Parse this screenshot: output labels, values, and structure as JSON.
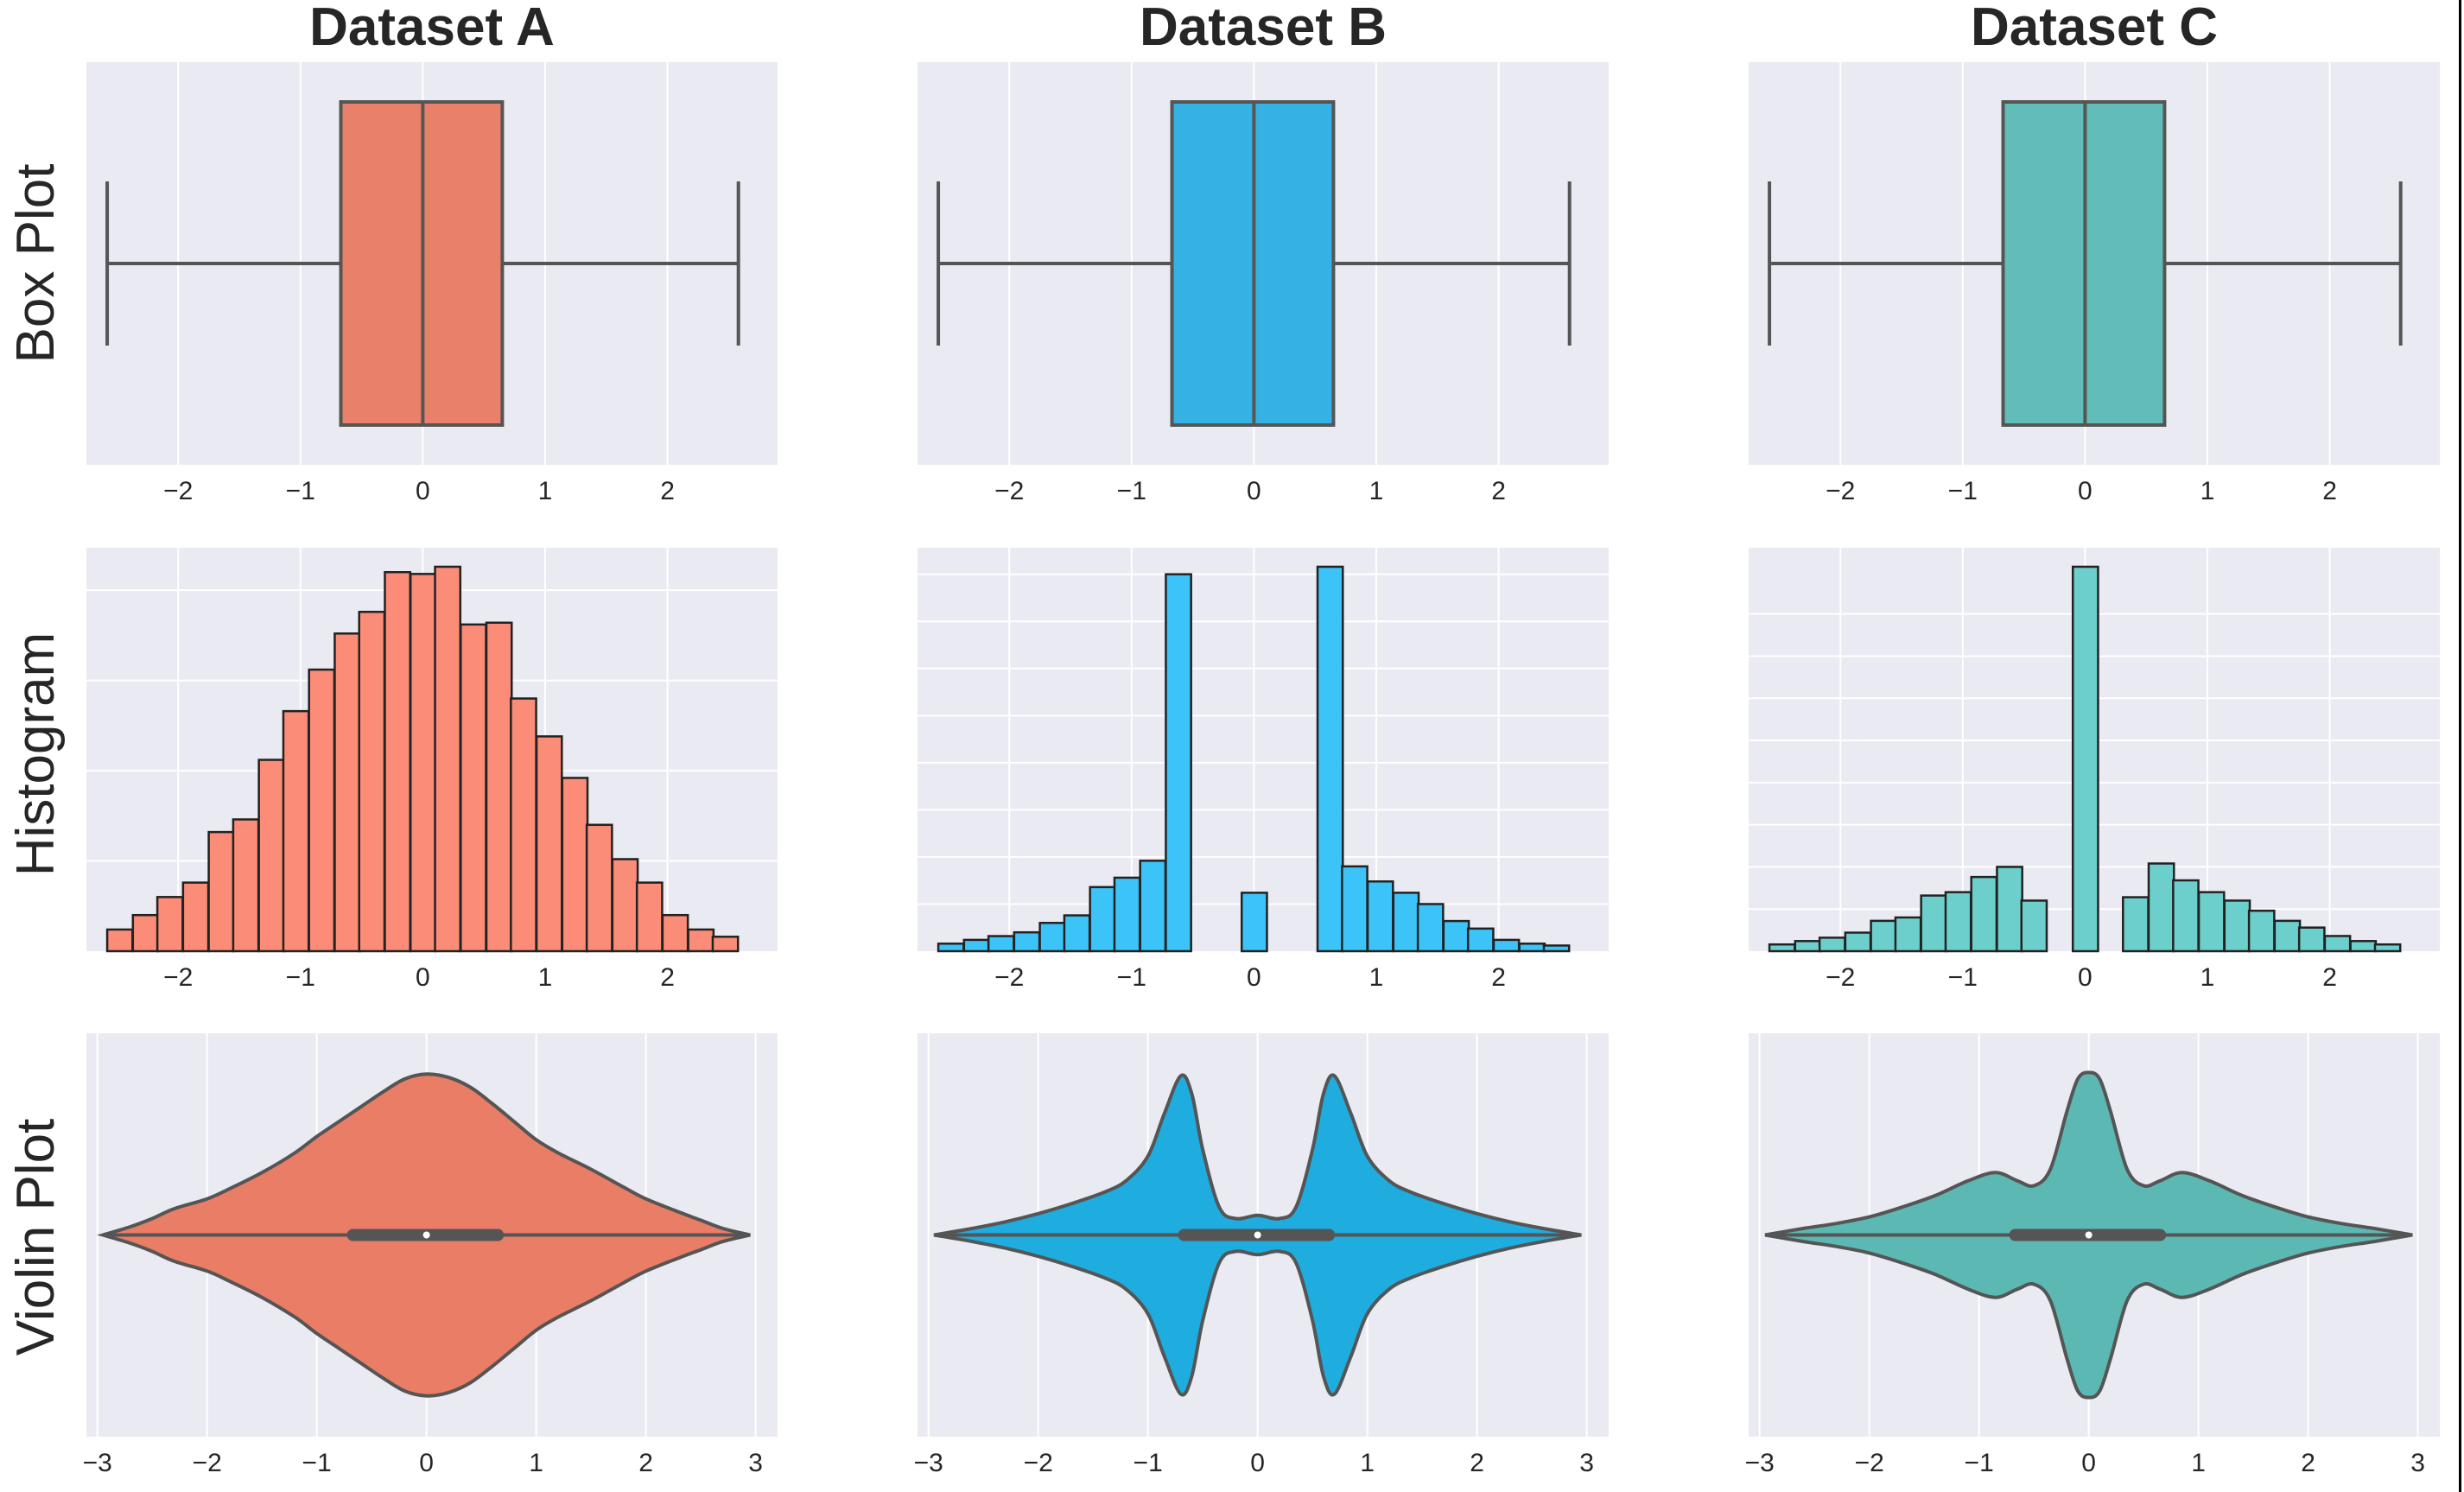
{
  "chart_data": {
    "type": "figure-grid",
    "columns": [
      "Dataset A",
      "Dataset B",
      "Dataset C"
    ],
    "rows": [
      "Box Plot",
      "Histogram",
      "Violin Plot"
    ],
    "colors": {
      "Dataset A": "#e8806a",
      "Dataset B": "#35b2e3",
      "Dataset C": "#62bdb9",
      "hist_Dataset A": "#fa8c78",
      "hist_Dataset B": "#3cc3f7",
      "hist_Dataset C": "#6ccfcb",
      "violin_Dataset A": "#ea7d66",
      "violin_Dataset B": "#1facdf",
      "violin_Dataset C": "#5cb8b3",
      "panel_bg": "#eaeaf2",
      "grid": "#ffffff",
      "edge": "#555555"
    },
    "grid": true,
    "box_plot": {
      "xlim": [
        -2.75,
        2.9
      ],
      "xticks": [
        "−2",
        "−1",
        "0",
        "1",
        "2"
      ],
      "xtick_values": [
        -2,
        -1,
        0,
        1,
        2
      ],
      "stats": [
        {
          "name": "Dataset A",
          "whisker_low": -2.58,
          "q1": -0.67,
          "median": 0.0,
          "q3": 0.65,
          "whisker_high": 2.58
        },
        {
          "name": "Dataset B",
          "whisker_low": -2.58,
          "q1": -0.67,
          "median": 0.0,
          "q3": 0.65,
          "whisker_high": 2.58
        },
        {
          "name": "Dataset C",
          "whisker_low": -2.58,
          "q1": -0.67,
          "median": 0.0,
          "q3": 0.65,
          "whisker_high": 2.58
        }
      ]
    },
    "histogram": {
      "xlim": [
        -2.75,
        2.9
      ],
      "xticks": [
        "−2",
        "−1",
        "0",
        "1",
        "2"
      ],
      "xtick_values": [
        -2,
        -1,
        0,
        1,
        2
      ],
      "bin_width": 0.2065,
      "series": [
        {
          "name": "Dataset A",
          "bins": [
            {
              "x0": -2.58,
              "count": 12
            },
            {
              "x0": -2.37,
              "count": 20
            },
            {
              "x0": -2.17,
              "count": 30
            },
            {
              "x0": -1.96,
              "count": 38
            },
            {
              "x0": -1.75,
              "count": 66
            },
            {
              "x0": -1.55,
              "count": 73
            },
            {
              "x0": -1.34,
              "count": 106
            },
            {
              "x0": -1.14,
              "count": 133
            },
            {
              "x0": -0.93,
              "count": 156
            },
            {
              "x0": -0.72,
              "count": 176
            },
            {
              "x0": -0.52,
              "count": 188
            },
            {
              "x0": -0.31,
              "count": 210
            },
            {
              "x0": -0.1,
              "count": 209
            },
            {
              "x0": 0.1,
              "count": 213
            },
            {
              "x0": 0.31,
              "count": 181
            },
            {
              "x0": 0.52,
              "count": 182
            },
            {
              "x0": 0.72,
              "count": 140
            },
            {
              "x0": 0.93,
              "count": 119
            },
            {
              "x0": 1.14,
              "count": 96
            },
            {
              "x0": 1.34,
              "count": 70
            },
            {
              "x0": 1.55,
              "count": 51
            },
            {
              "x0": 1.75,
              "count": 38
            },
            {
              "x0": 1.96,
              "count": 20
            },
            {
              "x0": 2.17,
              "count": 12
            },
            {
              "x0": 2.37,
              "count": 8
            }
          ]
        },
        {
          "name": "Dataset B",
          "bins": [
            {
              "x0": -2.58,
              "count": 4
            },
            {
              "x0": -2.37,
              "count": 6
            },
            {
              "x0": -2.17,
              "count": 8
            },
            {
              "x0": -1.96,
              "count": 10
            },
            {
              "x0": -1.75,
              "count": 15
            },
            {
              "x0": -1.55,
              "count": 19
            },
            {
              "x0": -1.34,
              "count": 34
            },
            {
              "x0": -1.14,
              "count": 39
            },
            {
              "x0": -0.93,
              "count": 48
            },
            {
              "x0": -0.72,
              "count": 200
            },
            {
              "x0": -0.52,
              "count": 0
            },
            {
              "x0": -0.31,
              "count": 0
            },
            {
              "x0": -0.1,
              "count": 31
            },
            {
              "x0": 0.1,
              "count": 0
            },
            {
              "x0": 0.31,
              "count": 0
            },
            {
              "x0": 0.52,
              "count": 204
            },
            {
              "x0": 0.72,
              "count": 45
            },
            {
              "x0": 0.93,
              "count": 37
            },
            {
              "x0": 1.14,
              "count": 31
            },
            {
              "x0": 1.34,
              "count": 25
            },
            {
              "x0": 1.55,
              "count": 16
            },
            {
              "x0": 1.75,
              "count": 12
            },
            {
              "x0": 1.96,
              "count": 6
            },
            {
              "x0": 2.17,
              "count": 4
            },
            {
              "x0": 2.37,
              "count": 3
            }
          ]
        },
        {
          "name": "Dataset C",
          "bins": [
            {
              "x0": -2.58,
              "count": 4
            },
            {
              "x0": -2.37,
              "count": 6
            },
            {
              "x0": -2.17,
              "count": 8
            },
            {
              "x0": -1.96,
              "count": 11
            },
            {
              "x0": -1.75,
              "count": 18
            },
            {
              "x0": -1.55,
              "count": 20
            },
            {
              "x0": -1.34,
              "count": 33
            },
            {
              "x0": -1.14,
              "count": 35
            },
            {
              "x0": -0.93,
              "count": 44
            },
            {
              "x0": -0.72,
              "count": 50
            },
            {
              "x0": -0.52,
              "count": 30
            },
            {
              "x0": -0.31,
              "count": 0
            },
            {
              "x0": -0.1,
              "count": 228
            },
            {
              "x0": 0.1,
              "count": 0
            },
            {
              "x0": 0.31,
              "count": 32
            },
            {
              "x0": 0.52,
              "count": 52
            },
            {
              "x0": 0.72,
              "count": 42
            },
            {
              "x0": 0.93,
              "count": 35
            },
            {
              "x0": 1.14,
              "count": 30
            },
            {
              "x0": 1.34,
              "count": 24
            },
            {
              "x0": 1.55,
              "count": 18
            },
            {
              "x0": 1.75,
              "count": 14
            },
            {
              "x0": 1.96,
              "count": 9
            },
            {
              "x0": 2.17,
              "count": 6
            },
            {
              "x0": 2.37,
              "count": 4
            }
          ]
        }
      ]
    },
    "violin_plot": {
      "xlim": [
        -3.1,
        3.2
      ],
      "xticks": [
        "−3",
        "−2",
        "−1",
        "0",
        "1",
        "2",
        "3"
      ],
      "xtick_values": [
        -3,
        -2,
        -1,
        0,
        1,
        2,
        3
      ],
      "series": [
        {
          "name": "Dataset A",
          "x": [
            -2.95,
            -2.7,
            -2.5,
            -2.3,
            -2.0,
            -1.8,
            -1.5,
            -1.2,
            -1.0,
            -0.8,
            -0.6,
            -0.4,
            -0.2,
            0.0,
            0.2,
            0.4,
            0.6,
            0.8,
            1.0,
            1.2,
            1.5,
            1.8,
            2.0,
            2.3,
            2.5,
            2.7,
            2.95
          ],
          "density": [
            0.0,
            0.05,
            0.1,
            0.16,
            0.22,
            0.28,
            0.38,
            0.5,
            0.6,
            0.69,
            0.78,
            0.87,
            0.95,
            0.98,
            0.96,
            0.9,
            0.8,
            0.69,
            0.58,
            0.5,
            0.4,
            0.29,
            0.22,
            0.14,
            0.09,
            0.04,
            0.0
          ],
          "iqr": [
            -0.67,
            0.65
          ],
          "median": 0.0
        },
        {
          "name": "Dataset B",
          "x": [
            -2.95,
            -2.6,
            -2.3,
            -2.0,
            -1.7,
            -1.4,
            -1.2,
            -1.0,
            -0.85,
            -0.7,
            -0.6,
            -0.5,
            -0.35,
            -0.2,
            0.0,
            0.2,
            0.35,
            0.5,
            0.6,
            0.7,
            0.85,
            1.0,
            1.2,
            1.4,
            1.7,
            2.0,
            2.3,
            2.6,
            2.95
          ],
          "density": [
            0.0,
            0.04,
            0.08,
            0.13,
            0.19,
            0.26,
            0.33,
            0.48,
            0.74,
            0.97,
            0.86,
            0.52,
            0.17,
            0.1,
            0.12,
            0.1,
            0.17,
            0.52,
            0.86,
            0.97,
            0.74,
            0.48,
            0.33,
            0.26,
            0.19,
            0.13,
            0.08,
            0.04,
            0.0
          ],
          "iqr": [
            -0.67,
            0.65
          ],
          "median": 0.0
        },
        {
          "name": "Dataset C",
          "x": [
            -2.95,
            -2.6,
            -2.3,
            -2.0,
            -1.7,
            -1.4,
            -1.1,
            -0.85,
            -0.65,
            -0.5,
            -0.35,
            -0.2,
            -0.1,
            0.0,
            0.1,
            0.2,
            0.35,
            0.5,
            0.65,
            0.85,
            1.1,
            1.4,
            1.7,
            2.0,
            2.3,
            2.6,
            2.95
          ],
          "density": [
            0.0,
            0.04,
            0.07,
            0.11,
            0.17,
            0.24,
            0.33,
            0.38,
            0.33,
            0.3,
            0.4,
            0.75,
            0.95,
            0.99,
            0.95,
            0.75,
            0.4,
            0.3,
            0.33,
            0.38,
            0.33,
            0.24,
            0.17,
            0.11,
            0.07,
            0.04,
            0.0
          ],
          "iqr": [
            -0.67,
            0.65
          ],
          "median": 0.0
        }
      ]
    }
  }
}
